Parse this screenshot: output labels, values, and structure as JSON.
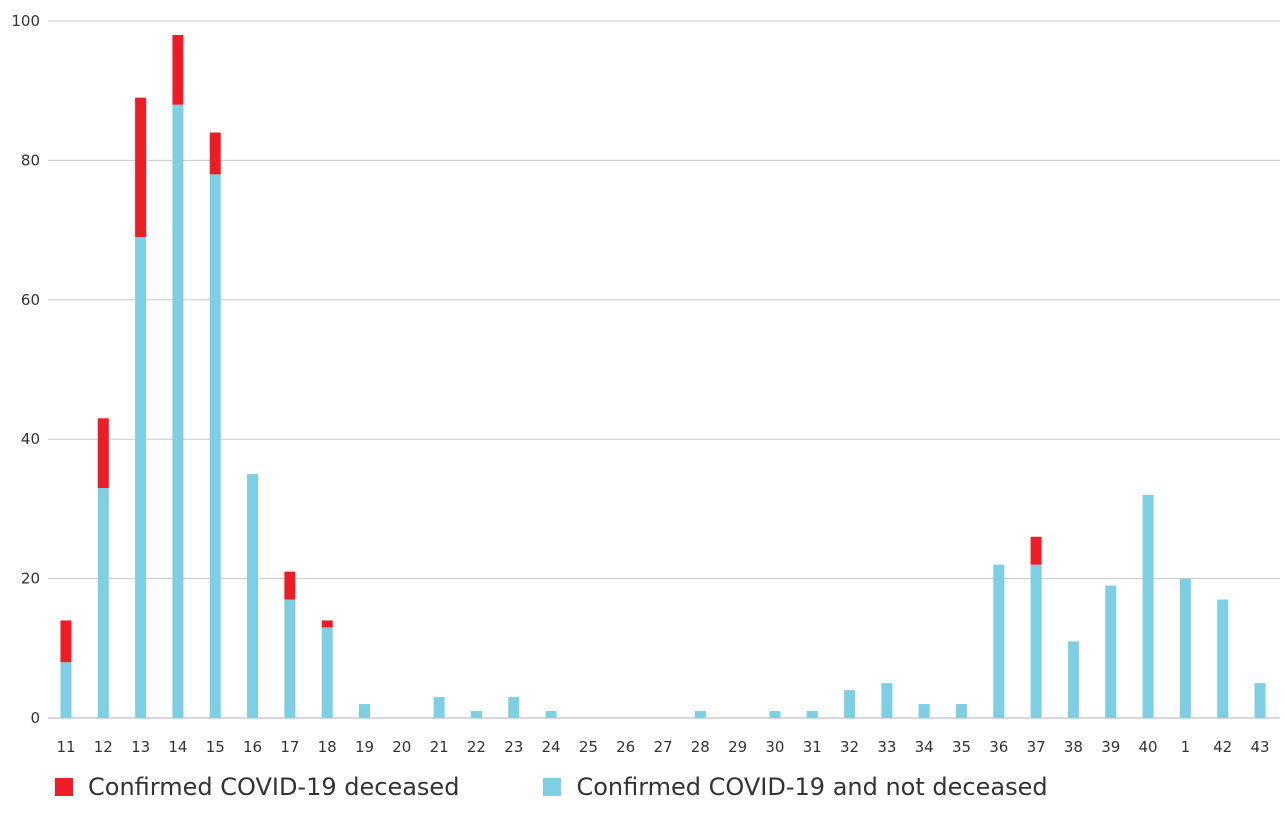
{
  "chart_data": {
    "type": "bar",
    "stacked": true,
    "categories": [
      "11",
      "12",
      "13",
      "14",
      "15",
      "16",
      "17",
      "18",
      "19",
      "20",
      "21",
      "22",
      "23",
      "24",
      "25",
      "26",
      "27",
      "28",
      "29",
      "30",
      "31",
      "32",
      "33",
      "34",
      "35",
      "36",
      "37",
      "38",
      "39",
      "40",
      "1",
      "42",
      "43"
    ],
    "series": [
      {
        "name": "Confirmed COVID-19 and not deceased",
        "color": "#7ecfe3",
        "values": [
          8,
          33,
          69,
          88,
          78,
          35,
          17,
          13,
          2,
          0,
          3,
          1,
          3,
          1,
          0,
          0,
          0,
          1,
          0,
          1,
          1,
          4,
          5,
          2,
          2,
          22,
          22,
          11,
          19,
          32,
          20,
          17,
          5
        ]
      },
      {
        "name": "Confirmed COVID-19 deceased",
        "color": "#ee1c25",
        "values": [
          6,
          10,
          20,
          10,
          6,
          0,
          4,
          1,
          0,
          0,
          0,
          0,
          0,
          0,
          0,
          0,
          0,
          0,
          0,
          0,
          0,
          0,
          0,
          0,
          0,
          0,
          4,
          0,
          0,
          0,
          0,
          0,
          0
        ]
      }
    ],
    "ylim": [
      0,
      100
    ],
    "yticks": [
      0,
      20,
      40,
      60,
      80,
      100
    ],
    "grid": true,
    "legend_position": "bottom-left"
  },
  "legend": {
    "deceased_label": "Confirmed COVID-19 deceased",
    "not_deceased_label": "Confirmed COVID-19 and not deceased"
  }
}
